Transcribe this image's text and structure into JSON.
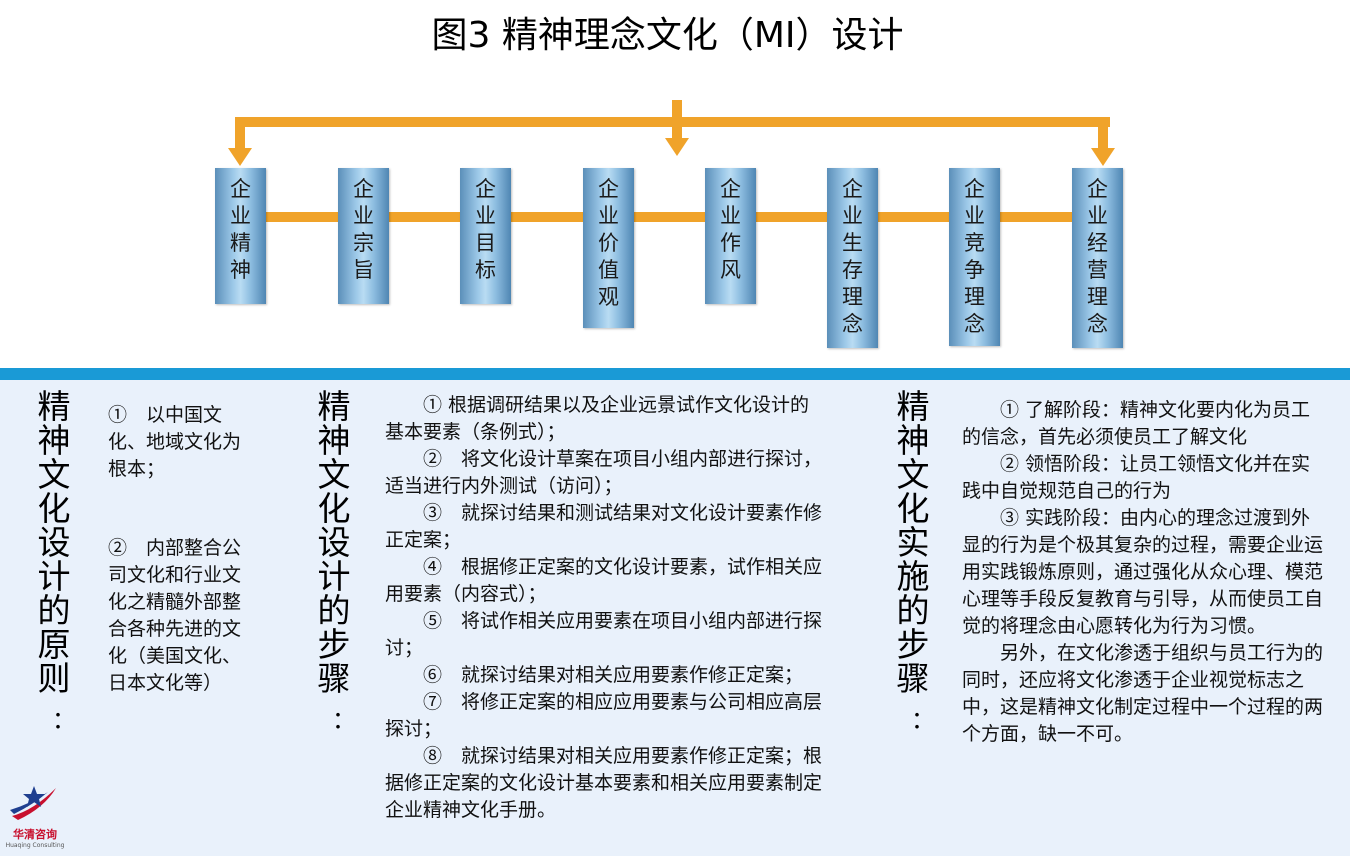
{
  "title": "图3  精神理念文化（MI）设计",
  "colors": {
    "connector": "#f0a32a",
    "pillar": "#9cc8e8",
    "panel_bar": "#1a9ad6",
    "panel_bg": "#e9f1fb"
  },
  "pillars": [
    "企业精神",
    "企业宗旨",
    "企业目标",
    "企业价值观",
    "企业作风",
    "企业生存理念",
    "企业竞争理念",
    "企业经营理念"
  ],
  "principles": {
    "heading": "精神文化设计的原则",
    "colon": "：",
    "items": [
      "①　以中国文化、地域文化为根本；",
      "②　内部整合公司文化和行业文化之精髓外部整合各种先进的文化（美国文化、日本文化等）"
    ]
  },
  "design_steps": {
    "heading": "精神文化设计的步骤",
    "colon": "：",
    "items": [
      "①  根据调研结果以及企业远景试作文化设计的基本要素（条例式）；",
      "②　将文化设计草案在项目小组内部进行探讨，适当进行内外测试（访问）；",
      "③　就探讨结果和测试结果对文化设计要素作修正定案；",
      "④　根据修正定案的文化设计要素，试作相关应用要素（内容式）；",
      "⑤　将试作相关应用要素在项目小组内部进行探讨；",
      "⑥　就探讨结果对相关应用要素作修正定案；",
      "⑦　将修正定案的相应应用要素与公司相应高层探讨；",
      "⑧　就探讨结果对相关应用要素作修正定案；根据修正定案的文化设计基本要素和相关应用要素制定企业精神文化手册。"
    ]
  },
  "implementation_steps": {
    "heading": "精神文化实施的步骤",
    "colon": "：",
    "items": [
      "① 了解阶段：精神文化要内化为员工的信念，首先必须使员工了解文化",
      "② 领悟阶段：让员工领悟文化并在实践中自觉规范自己的行为",
      "③ 实践阶段：由内心的理念过渡到外显的行为是个极其复杂的过程，需要企业运用实践锻炼原则，通过强化从众心理、模范心理等手段反复教育与引导，从而使员工自觉的将理念由心愿转化为行为习惯。",
      "另外，在文化渗透于组织与员工行为的同时，还应将文化渗透于企业视觉标志之中，这是精神文化制定过程中一个过程的两个方面，缺一不可。"
    ]
  },
  "logo": {
    "name": "华清咨询",
    "subtitle": "Huaqing Consulting",
    "icon": "star-swoosh-logo"
  }
}
